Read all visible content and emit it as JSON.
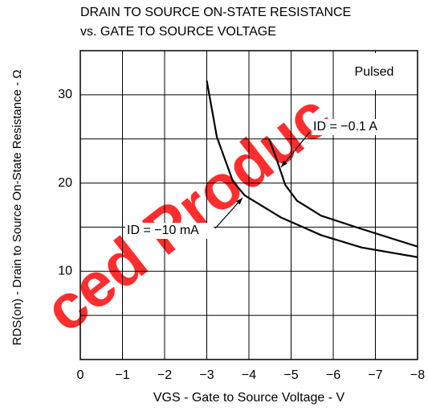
{
  "chart_data": {
    "type": "line",
    "title": [
      "DRAIN TO SOURCE ON-STATE RESISTANCE",
      "vs. GATE TO SOURCE VOLTAGE"
    ],
    "xlabel": "VGS - Gate to Source Voltage - V",
    "ylabel": "RDS(on) - Drain to Source On-State Resistance - Ω",
    "xlim": [
      0,
      -8
    ],
    "ylim": [
      0,
      35
    ],
    "xticks": [
      0,
      {
        "value": -1,
        "label": "−1"
      },
      {
        "value": -2,
        "label": "−2"
      },
      {
        "value": -3,
        "label": "−3"
      },
      {
        "value": -4,
        "label": "−4"
      },
      {
        "value": -5,
        "label": "−5"
      },
      {
        "value": -6,
        "label": "−6"
      },
      {
        "value": -7,
        "label": "−7"
      },
      {
        "value": -8,
        "label": "−8"
      }
    ],
    "yticks": [
      10,
      20,
      30
    ],
    "ygrid": [
      0,
      5,
      10,
      15,
      20,
      25,
      30,
      35
    ],
    "grid": true,
    "annotations": [
      "Pulsed"
    ],
    "watermark": "ced Produc",
    "series": [
      {
        "name": "ID = −10 mA",
        "color": "#000000",
        "x": [
          -3,
          -3.24,
          -3.62,
          -3.9,
          -4.76,
          -5.71,
          -6.67,
          -8
        ],
        "values": [
          31.6,
          25.2,
          20.2,
          18.6,
          16.1,
          14.1,
          12.7,
          11.6
        ]
      },
      {
        "name": "ID = −0.1 A",
        "color": "#000000",
        "x": [
          -4.48,
          -4.67,
          -4.86,
          -5.14,
          -5.71,
          -6.67,
          -8
        ],
        "values": [
          25,
          22.5,
          19.8,
          18,
          16.3,
          14.8,
          12.8
        ]
      }
    ]
  }
}
